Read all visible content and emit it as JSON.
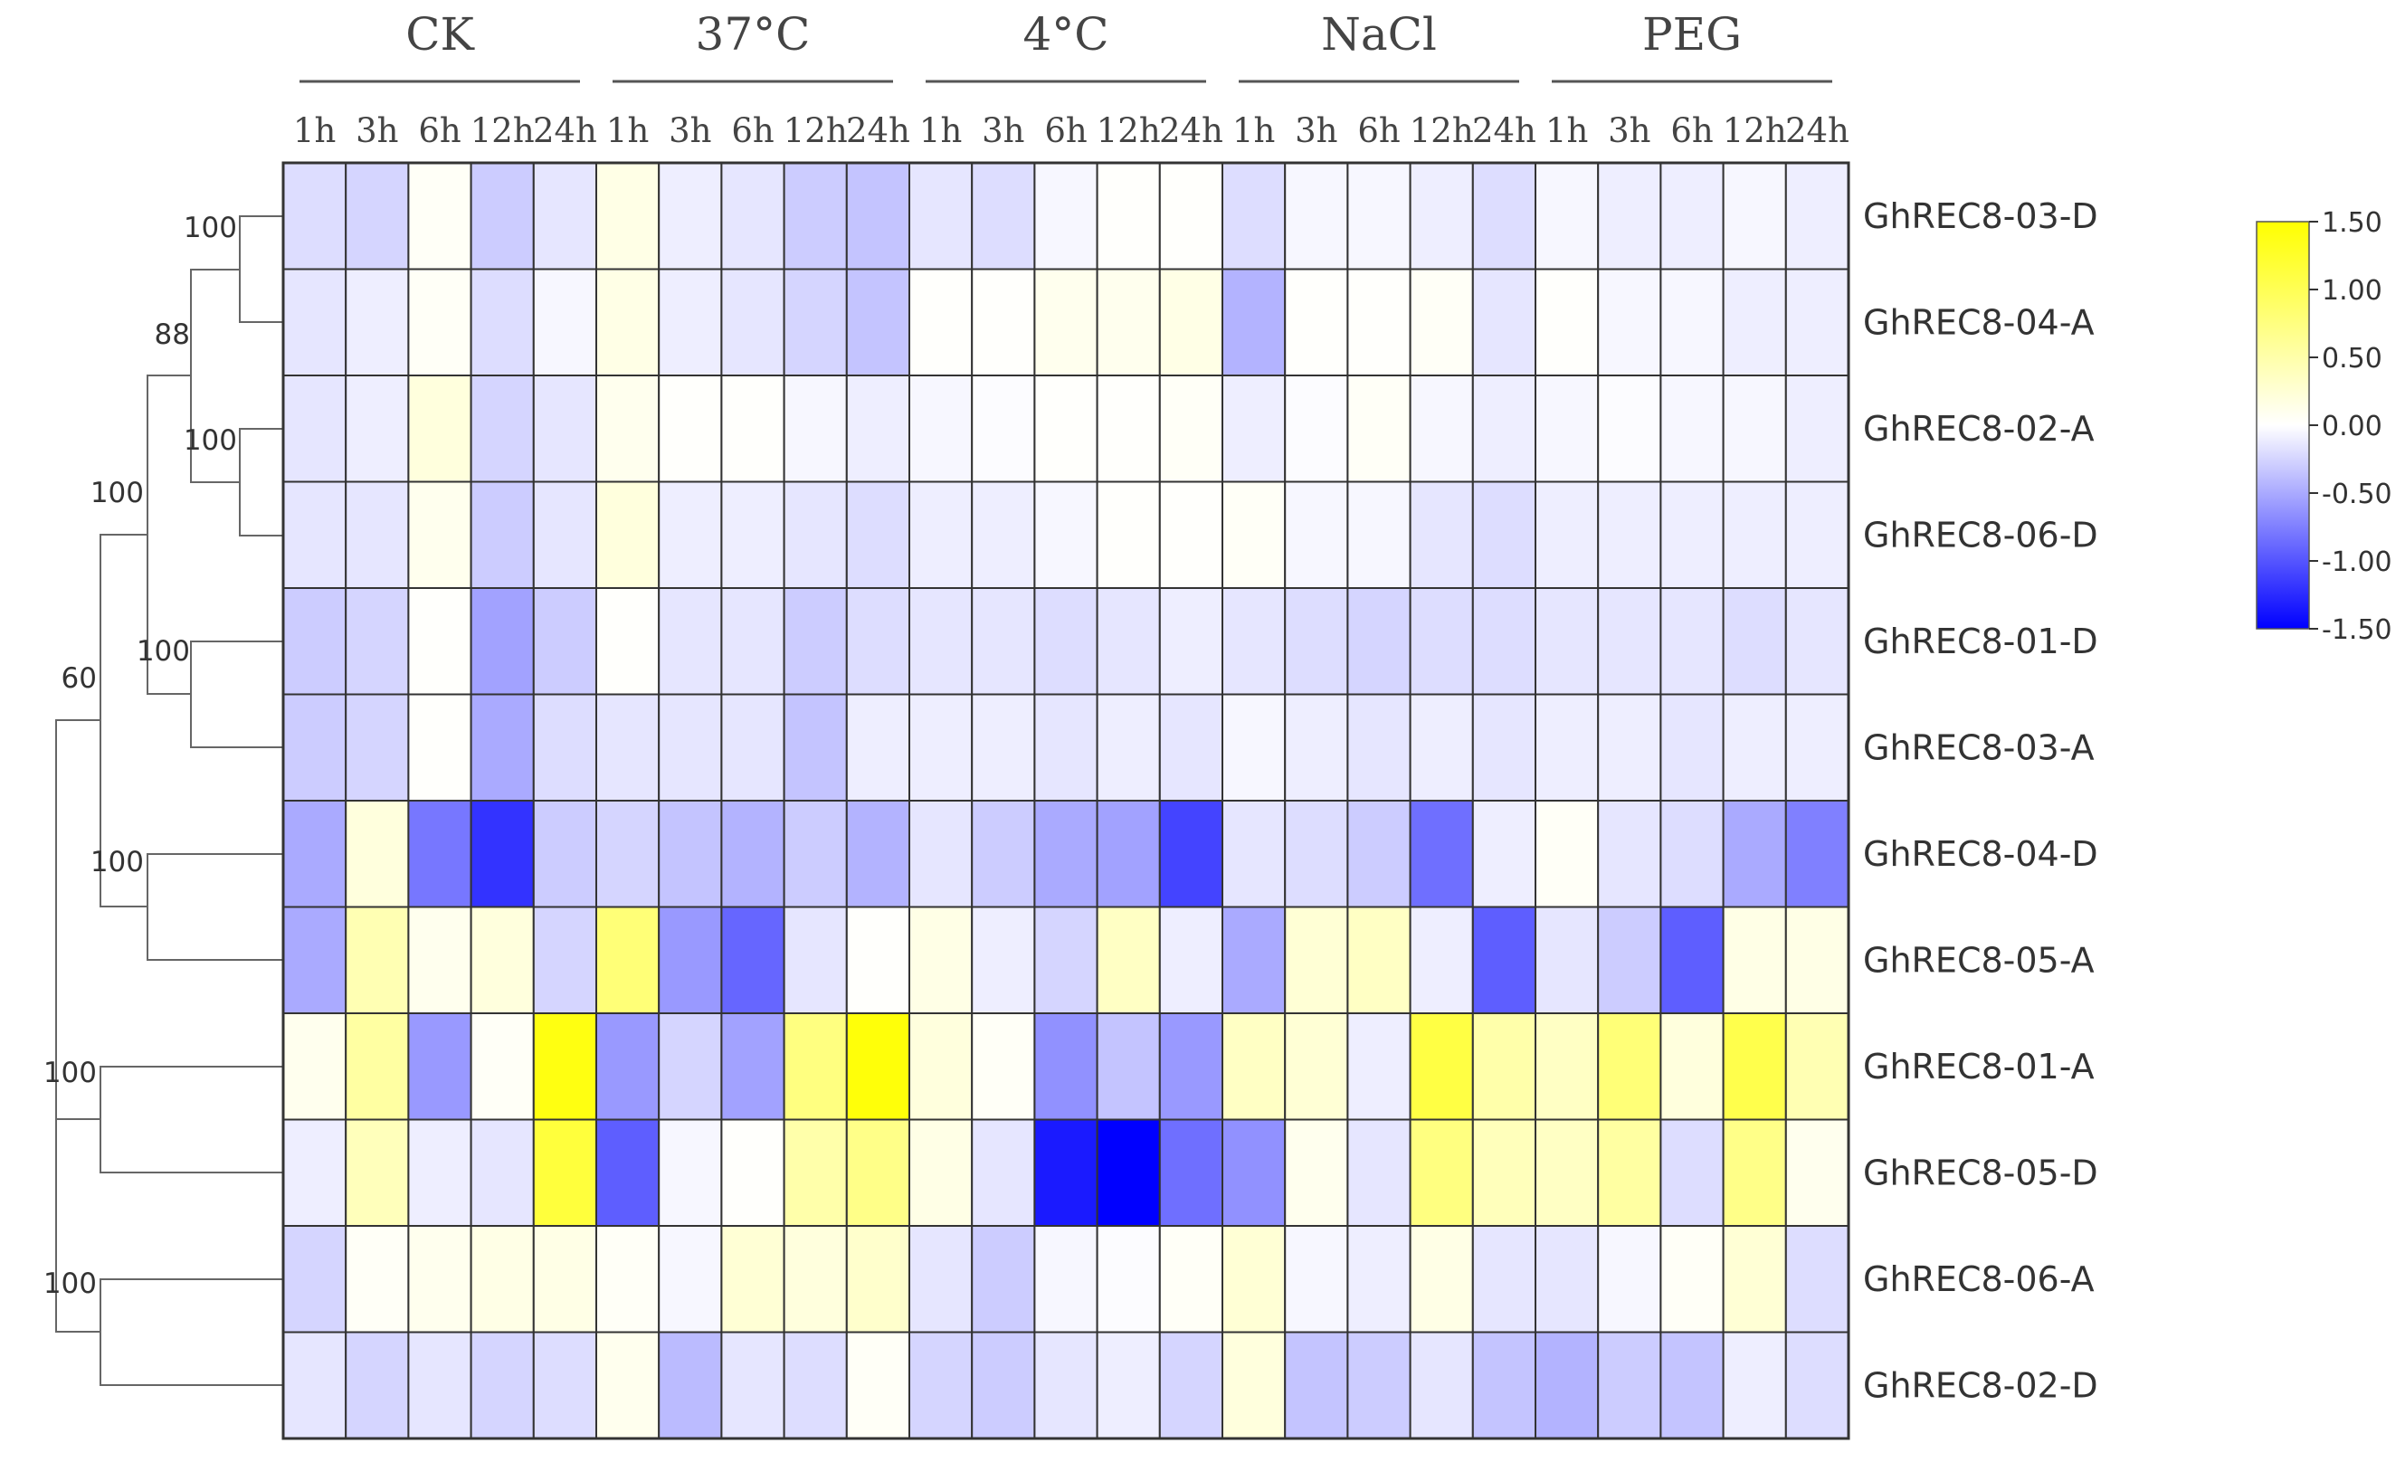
{
  "chart_data": {
    "type": "heatmap",
    "title": "",
    "conditions": [
      "CK",
      "37°C",
      "4°C",
      "NaCl",
      "PEG"
    ],
    "timepoints": [
      "1h",
      "3h",
      "6h",
      "12h",
      "24h"
    ],
    "genes": [
      "GhREC8-03-D",
      "GhREC8-04-A",
      "GhREC8-02-A",
      "GhREC8-06-D",
      "GhREC8-01-D",
      "GhREC8-03-A",
      "GhREC8-04-D",
      "GhREC8-05-A",
      "GhREC8-01-A",
      "GhREC8-05-D",
      "GhREC8-06-A",
      "GhREC8-02-D"
    ],
    "values": [
      [
        -0.2,
        -0.25,
        0.05,
        -0.3,
        -0.15,
        0.15,
        -0.1,
        -0.15,
        -0.3,
        -0.35,
        -0.15,
        -0.2,
        -0.05,
        0.02,
        0.02,
        -0.2,
        -0.05,
        -0.05,
        -0.1,
        -0.2,
        -0.05,
        -0.1,
        -0.1,
        -0.05,
        -0.1
      ],
      [
        -0.15,
        -0.1,
        0.05,
        -0.2,
        -0.05,
        0.15,
        -0.1,
        -0.15,
        -0.25,
        -0.35,
        0.02,
        0.02,
        0.1,
        0.1,
        0.15,
        -0.45,
        0.02,
        0.02,
        0.05,
        -0.15,
        0.02,
        -0.05,
        -0.05,
        -0.1,
        -0.1
      ],
      [
        -0.15,
        -0.1,
        0.2,
        -0.25,
        -0.15,
        0.1,
        0.02,
        0.02,
        -0.05,
        -0.1,
        -0.05,
        -0.02,
        0.02,
        0.02,
        0.05,
        -0.1,
        -0.02,
        0.05,
        -0.05,
        -0.1,
        -0.05,
        -0.02,
        -0.05,
        -0.05,
        -0.1
      ],
      [
        -0.15,
        -0.15,
        0.1,
        -0.3,
        -0.15,
        0.2,
        -0.1,
        -0.1,
        -0.15,
        -0.2,
        -0.1,
        -0.1,
        -0.05,
        0.02,
        0.02,
        0.05,
        -0.05,
        -0.05,
        -0.15,
        -0.2,
        -0.1,
        -0.1,
        -0.1,
        -0.1,
        -0.1
      ],
      [
        -0.3,
        -0.25,
        0.02,
        -0.55,
        -0.3,
        0.02,
        -0.15,
        -0.15,
        -0.3,
        -0.2,
        -0.15,
        -0.15,
        -0.2,
        -0.15,
        -0.1,
        -0.15,
        -0.2,
        -0.25,
        -0.2,
        -0.2,
        -0.15,
        -0.15,
        -0.15,
        -0.2,
        -0.15
      ],
      [
        -0.3,
        -0.25,
        0.02,
        -0.5,
        -0.2,
        -0.15,
        -0.15,
        -0.15,
        -0.35,
        -0.1,
        -0.1,
        -0.1,
        -0.15,
        -0.1,
        -0.15,
        -0.05,
        -0.1,
        -0.15,
        -0.1,
        -0.15,
        -0.1,
        -0.1,
        -0.15,
        -0.1,
        -0.1
      ],
      [
        -0.5,
        0.2,
        -0.8,
        -1.2,
        -0.3,
        -0.25,
        -0.35,
        -0.45,
        -0.3,
        -0.45,
        -0.15,
        -0.3,
        -0.5,
        -0.55,
        -1.1,
        -0.15,
        -0.2,
        -0.3,
        -0.85,
        -0.1,
        0.05,
        -0.15,
        -0.2,
        -0.5,
        -0.75
      ],
      [
        -0.5,
        0.45,
        0.1,
        0.2,
        -0.25,
        0.8,
        -0.6,
        -0.9,
        -0.15,
        0.02,
        0.15,
        -0.1,
        -0.25,
        0.35,
        -0.1,
        -0.5,
        0.25,
        0.35,
        -0.1,
        -0.95,
        -0.15,
        -0.3,
        -0.95,
        0.15,
        0.15
      ],
      [
        0.1,
        0.55,
        -0.6,
        0.05,
        1.4,
        -0.6,
        -0.25,
        -0.55,
        0.75,
        1.45,
        0.2,
        0.05,
        -0.65,
        -0.35,
        -0.6,
        0.35,
        0.25,
        -0.1,
        1.1,
        0.5,
        0.35,
        0.8,
        0.2,
        1.05,
        0.45
      ],
      [
        -0.1,
        0.4,
        -0.1,
        -0.15,
        1.15,
        -0.95,
        -0.05,
        0.02,
        0.5,
        0.7,
        0.15,
        -0.15,
        -1.35,
        -1.5,
        -0.85,
        -0.65,
        0.1,
        -0.15,
        0.75,
        0.4,
        0.35,
        0.55,
        -0.2,
        0.7,
        0.1
      ],
      [
        -0.25,
        0.05,
        0.1,
        0.15,
        0.15,
        0.05,
        -0.05,
        0.25,
        0.2,
        0.3,
        -0.15,
        -0.3,
        -0.05,
        -0.02,
        0.05,
        0.25,
        -0.05,
        -0.1,
        0.15,
        -0.15,
        -0.15,
        -0.05,
        0.05,
        0.25,
        -0.2
      ],
      [
        -0.15,
        -0.25,
        -0.15,
        -0.25,
        -0.2,
        0.1,
        -0.4,
        -0.15,
        -0.2,
        0.05,
        -0.25,
        -0.3,
        -0.15,
        -0.1,
        -0.25,
        0.2,
        -0.35,
        -0.3,
        -0.15,
        -0.35,
        -0.45,
        -0.3,
        -0.35,
        -0.1,
        -0.2
      ]
    ],
    "color_scale": {
      "min": -1.5,
      "max": 1.5,
      "low": "#0000ff",
      "mid": "#ffffff",
      "high": "#ffff00"
    },
    "colorbar_ticks": [
      "1.50",
      "1.00",
      "0.50",
      "0.00",
      "-0.50",
      "-1.00",
      "-1.50"
    ],
    "bootstrap_values": [
      "100",
      "88",
      "100",
      "100",
      "100",
      "60",
      "100",
      "100",
      "100"
    ],
    "grid_color": "#333333"
  }
}
